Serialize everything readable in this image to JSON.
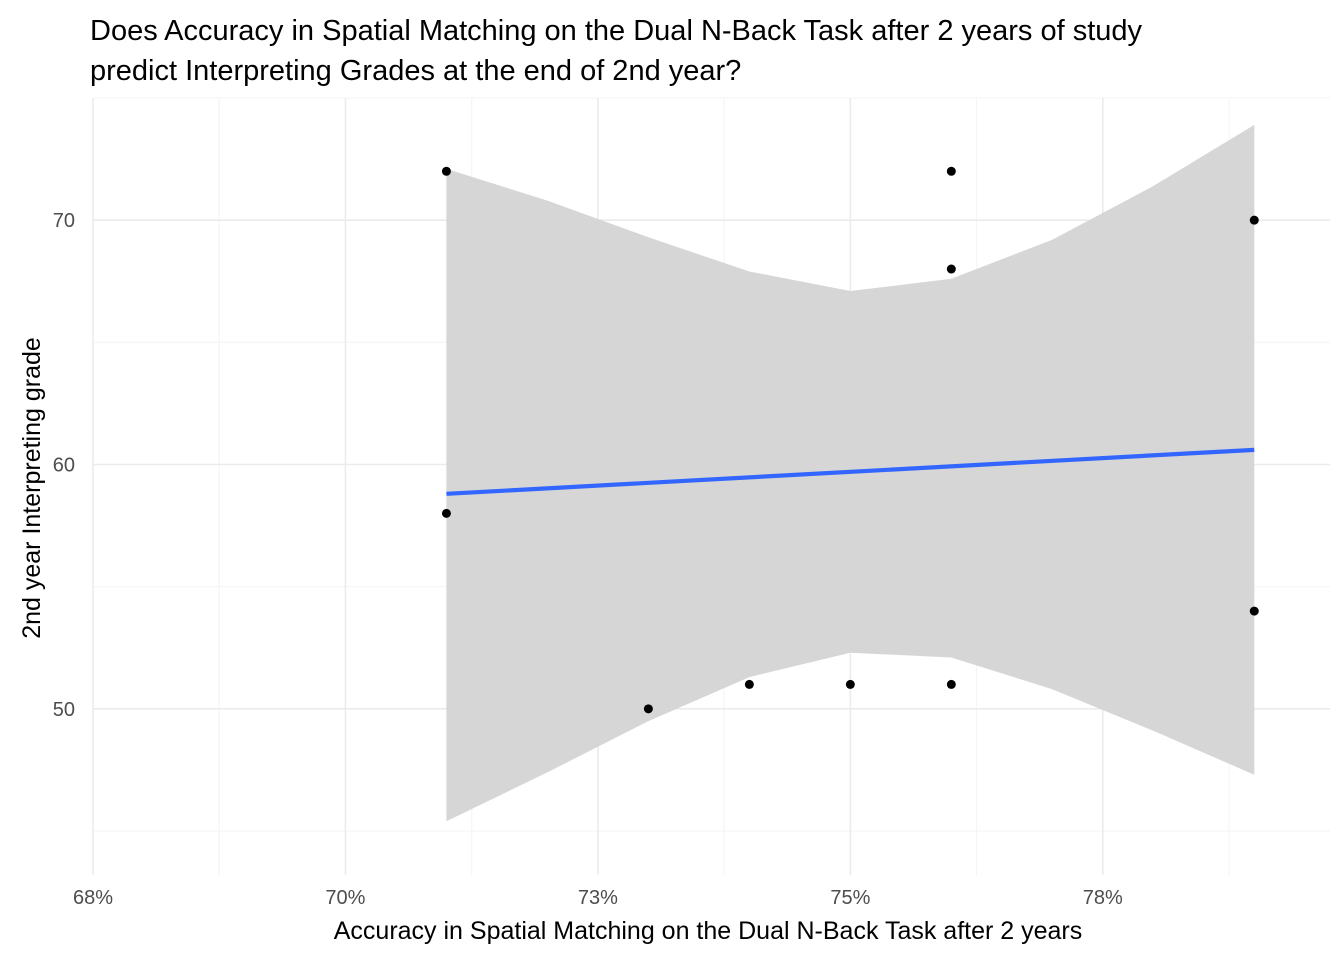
{
  "chart_data": {
    "type": "scatter",
    "title": "Does Accuracy in Spatial Matching on the Dual N-Back Task after 2 years of study predict Interpreting Grades at the end of 2nd year?",
    "title_lines": [
      "Does Accuracy in Spatial Matching on the Dual N-Back Task after 2 years of study",
      "predict Interpreting Grades at the end of 2nd year?"
    ],
    "xlabel": "Accuracy in Spatial Matching on the Dual N-Back Task after 2 years",
    "ylabel": "2nd year Interpreting grade",
    "xlim": [
      0.675,
      0.7975
    ],
    "ylim": [
      43.2,
      75
    ],
    "x_ticks": [
      0.675,
      0.7,
      0.725,
      0.75,
      0.775
    ],
    "x_tick_labels": [
      "68%",
      "70%",
      "73%",
      "75%",
      "78%"
    ],
    "y_ticks": [
      50,
      60,
      70
    ],
    "y_tick_labels": [
      "50",
      "60",
      "70"
    ],
    "grid": true,
    "points": [
      {
        "x": 0.71,
        "y": 72
      },
      {
        "x": 0.71,
        "y": 58
      },
      {
        "x": 0.73,
        "y": 50
      },
      {
        "x": 0.74,
        "y": 51
      },
      {
        "x": 0.75,
        "y": 51
      },
      {
        "x": 0.76,
        "y": 72
      },
      {
        "x": 0.76,
        "y": 68
      },
      {
        "x": 0.76,
        "y": 51
      },
      {
        "x": 0.79,
        "y": 70
      },
      {
        "x": 0.79,
        "y": 54
      }
    ],
    "fit": {
      "method": "linear",
      "line": [
        {
          "x": 0.71,
          "y": 58.8
        },
        {
          "x": 0.79,
          "y": 60.6
        }
      ],
      "confidence_band": [
        {
          "x": 0.71,
          "lower": 45.4,
          "upper": 72.1
        },
        {
          "x": 0.72,
          "lower": 47.4,
          "upper": 70.8
        },
        {
          "x": 0.73,
          "lower": 49.5,
          "upper": 69.3
        },
        {
          "x": 0.74,
          "lower": 51.3,
          "upper": 67.9
        },
        {
          "x": 0.75,
          "lower": 52.3,
          "upper": 67.1
        },
        {
          "x": 0.76,
          "lower": 52.1,
          "upper": 67.6
        },
        {
          "x": 0.77,
          "lower": 50.8,
          "upper": 69.2
        },
        {
          "x": 0.78,
          "lower": 49.1,
          "upper": 71.4
        },
        {
          "x": 0.79,
          "lower": 47.3,
          "upper": 73.9
        }
      ]
    },
    "colors": {
      "points": "#000000",
      "fit_line": "#3366FF",
      "confidence_band": "#d6d6d6",
      "grid_major": "#ebebeb",
      "grid_minor": "#f5f5f5",
      "tick_text": "#4d4d4d"
    }
  }
}
